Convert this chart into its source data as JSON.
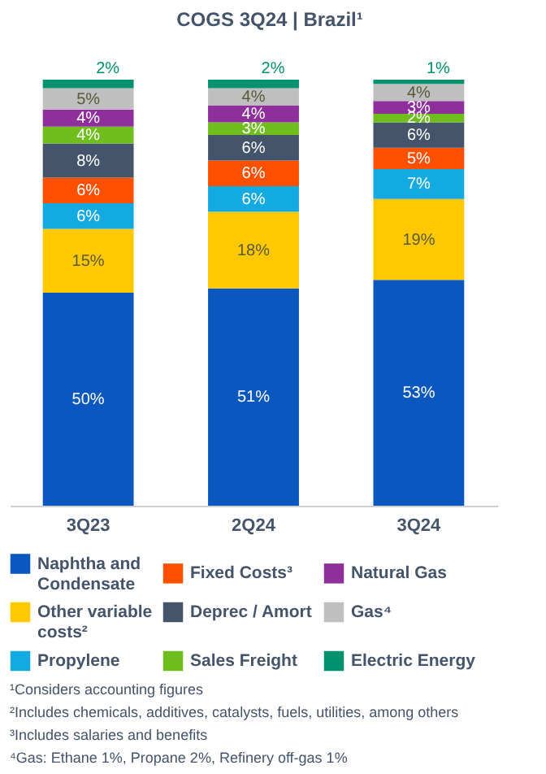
{
  "chart_data": {
    "type": "bar",
    "title": "COGS 3Q24 | Brazil¹",
    "categories": [
      "3Q23",
      "2Q24",
      "3Q24"
    ],
    "stacked": true,
    "legend": "bottom",
    "series": [
      {
        "name": "Naphtha and Condensate",
        "color": "#0b57c0",
        "values": [
          50,
          51,
          53
        ],
        "value_labels": [
          "50%",
          "51%",
          "53%"
        ]
      },
      {
        "name": "Other variable costs²",
        "color": "#ffc800",
        "values": [
          15,
          18,
          19
        ],
        "value_labels": [
          "15%",
          "18%",
          "19%"
        ]
      },
      {
        "name": "Propylene",
        "color": "#13a9e1",
        "values": [
          6,
          6,
          7
        ],
        "value_labels": [
          "6%",
          "6%",
          "7%"
        ]
      },
      {
        "name": "Fixed Costs³",
        "color": "#ff5000",
        "values": [
          6,
          6,
          5
        ],
        "value_labels": [
          "6%",
          "6%",
          "5%"
        ]
      },
      {
        "name": "Deprec / Amort",
        "color": "#44546a",
        "values": [
          8,
          6,
          6
        ],
        "value_labels": [
          "8%",
          "6%",
          "6%"
        ]
      },
      {
        "name": "Sales Freight",
        "color": "#6fbe1e",
        "values": [
          4,
          3,
          2
        ],
        "value_labels": [
          "4%",
          "3%",
          "2%"
        ]
      },
      {
        "name": "Natural Gas",
        "color": "#8e2f9c",
        "values": [
          4,
          4,
          3
        ],
        "value_labels": [
          "4%",
          "4%",
          "3%"
        ]
      },
      {
        "name": "Gas⁴",
        "color": "#bfbfbf",
        "values": [
          5,
          4,
          4
        ],
        "value_labels": [
          "5%",
          "4%",
          "4%"
        ]
      },
      {
        "name": "Electric Energy",
        "color": "#00926e",
        "values": [
          2,
          2,
          1
        ],
        "value_labels": [
          "2%",
          "2%",
          "1%"
        ]
      }
    ],
    "annotations": [
      "¹Considers accounting figures",
      "²Includes chemicals, additives, catalysts, fuels, utilities, among others",
      "³Includes salaries and benefits",
      "⁴Gas: Ethane 1%, Propane 2%, Refinery off-gas 1%"
    ]
  }
}
